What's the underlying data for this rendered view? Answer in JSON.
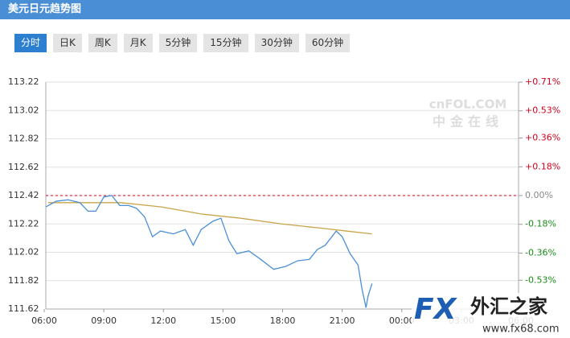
{
  "header": {
    "title": "美元日元趋势图"
  },
  "tabs": [
    {
      "label": "分时",
      "active": true
    },
    {
      "label": "日K",
      "active": false
    },
    {
      "label": "周K",
      "active": false
    },
    {
      "label": "月K",
      "active": false
    },
    {
      "label": "5分钟",
      "active": false
    },
    {
      "label": "15分钟",
      "active": false
    },
    {
      "label": "30分钟",
      "active": false
    },
    {
      "label": "60分钟",
      "active": false
    }
  ],
  "watermark": {
    "brand": "cnFOL.COM",
    "name": "中金在线"
  },
  "logo": {
    "mark": "FX",
    "name": "外汇之家",
    "url": "www.fx68.com"
  },
  "chart_data": {
    "type": "line",
    "xlim": [
      0,
      24
    ],
    "xticks": [
      {
        "value": 0,
        "label": "06:00"
      },
      {
        "value": 3,
        "label": "09:00"
      },
      {
        "value": 6,
        "label": "12:00"
      },
      {
        "value": 9,
        "label": "15:00"
      },
      {
        "value": 12,
        "label": "18:00"
      },
      {
        "value": 15,
        "label": "21:00"
      },
      {
        "value": 18,
        "label": "00:00"
      },
      {
        "value": 21,
        "label": "03:00"
      },
      {
        "value": 24,
        "label": "06:00"
      }
    ],
    "ylim": [
      111.62,
      113.22
    ],
    "yticks": [
      113.22,
      113.02,
      112.82,
      112.62,
      112.42,
      112.22,
      112.02,
      111.82,
      111.62
    ],
    "y2lim": [
      -0.71,
      0.71
    ],
    "y2ticks": [
      {
        "value": 0.71,
        "label": "+0.71%"
      },
      {
        "value": 0.53,
        "label": "+0.53%"
      },
      {
        "value": 0.36,
        "label": "+0.36%"
      },
      {
        "value": 0.18,
        "label": "+0.18%"
      },
      {
        "value": 0,
        "label": "0.00%"
      },
      {
        "value": -0.18,
        "label": "-0.18%"
      },
      {
        "value": -0.36,
        "label": "-0.36%"
      },
      {
        "value": -0.53,
        "label": "-0.53%"
      }
    ],
    "reference_line": 112.42,
    "grid": true,
    "series": [
      {
        "name": "price",
        "color": "#4a8fd6",
        "x": [
          0.08,
          0.6,
          1.2,
          1.8,
          2.2,
          2.6,
          3.0,
          3.4,
          3.8,
          4.25,
          4.65,
          5.05,
          5.45,
          5.85,
          6.5,
          7.1,
          7.5,
          7.9,
          8.5,
          8.9,
          9.3,
          9.7,
          10.3,
          10.9,
          11.55,
          12.15,
          12.75,
          13.35,
          13.75,
          14.15,
          14.7,
          15.0,
          15.4,
          15.8,
          16.0,
          16.2,
          16.3,
          16.5
        ],
        "values": [
          112.34,
          112.38,
          112.39,
          112.37,
          112.31,
          112.31,
          112.41,
          112.42,
          112.35,
          112.35,
          112.33,
          112.27,
          112.13,
          112.17,
          112.15,
          112.18,
          112.07,
          112.18,
          112.24,
          112.26,
          112.1,
          112.01,
          112.03,
          111.97,
          111.9,
          111.92,
          111.96,
          111.97,
          112.04,
          112.07,
          112.17,
          112.13,
          112.01,
          111.93,
          111.76,
          111.63,
          111.71,
          111.8
        ]
      },
      {
        "name": "average",
        "color": "#c9a44a",
        "x": [
          0.2,
          3.85,
          5.9,
          7.9,
          9.9,
          11.95,
          13.95,
          15.2,
          16.5
        ],
        "values": [
          112.37,
          112.37,
          112.34,
          112.29,
          112.26,
          112.22,
          112.19,
          112.17,
          112.15
        ]
      }
    ]
  }
}
